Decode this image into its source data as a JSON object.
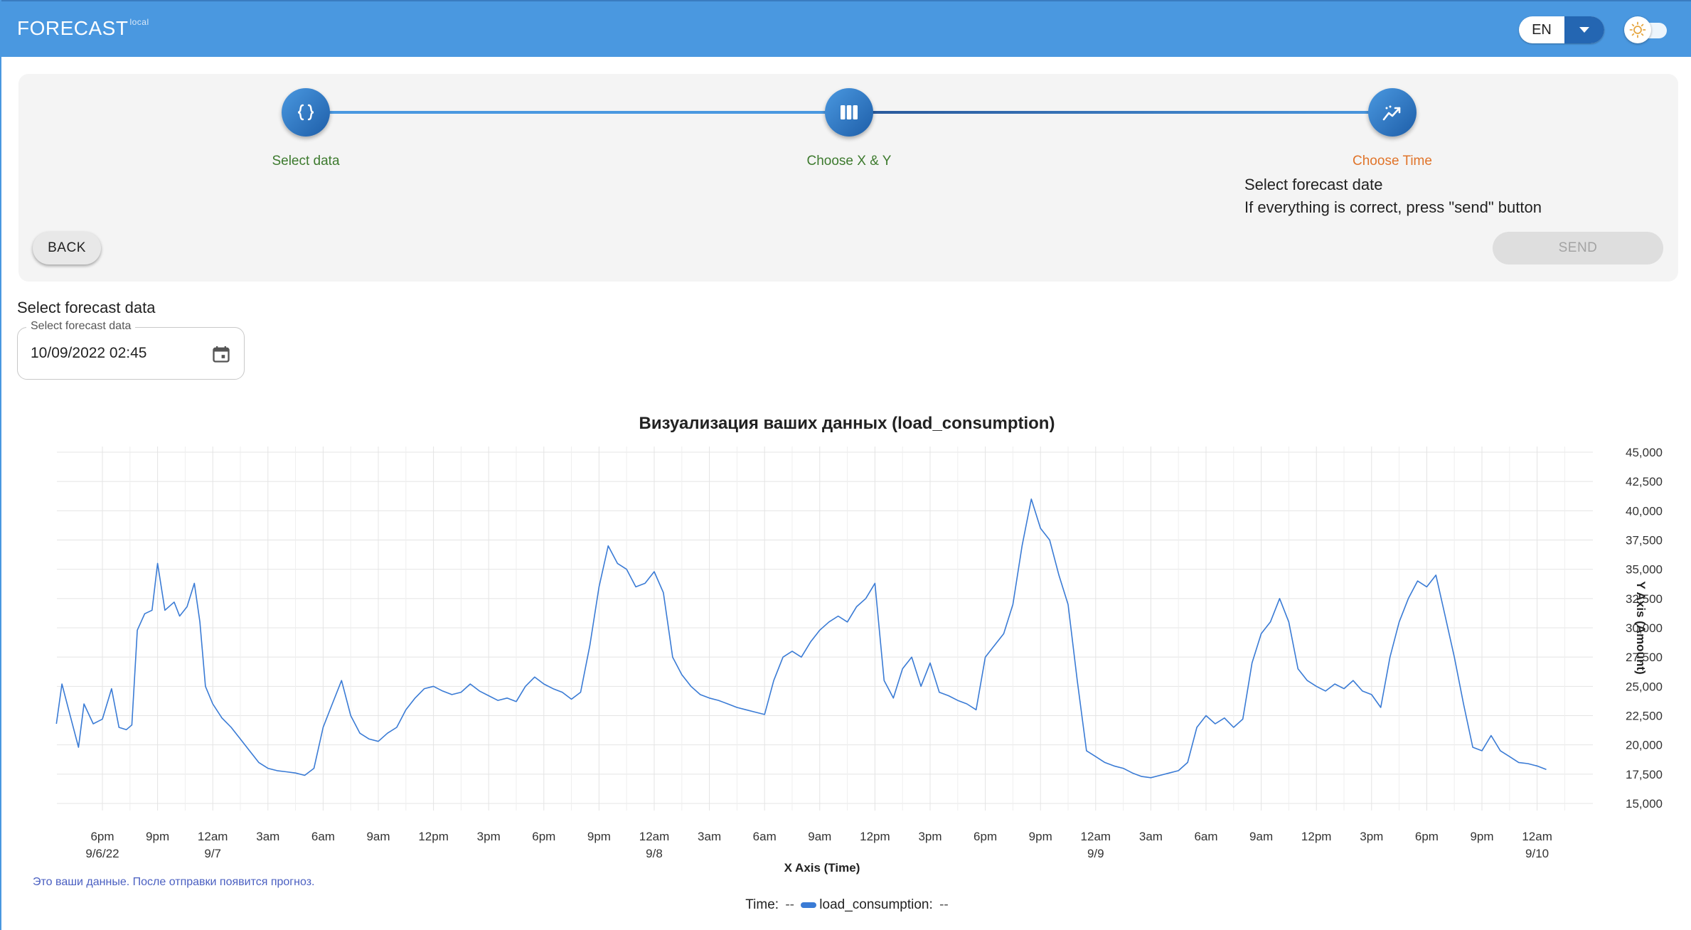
{
  "app": {
    "title": "FORECAST",
    "env": "local"
  },
  "header": {
    "language": "EN"
  },
  "stepper": {
    "steps": [
      {
        "label": "Select data",
        "icon": "braces-icon",
        "color": "#3d7a2e"
      },
      {
        "label": "Choose X & Y",
        "icon": "columns-icon",
        "color": "#3d7a2e"
      },
      {
        "label": "Choose Time",
        "icon": "trend-icon",
        "color": "#e0742a"
      }
    ],
    "description_line1": "Select forecast date",
    "description_line2": "If everything is correct, press \"send\" button",
    "back_label": "BACK",
    "send_label": "SEND"
  },
  "date_picker": {
    "heading": "Select forecast data",
    "legend": "Select forecast data",
    "value": "10/09/2022 02:45"
  },
  "chart_note": "Это ваши данные. После отправки появится прогноз.",
  "legend": {
    "time_label": "Time:",
    "time_value": "--",
    "series_label": "load_consumption:",
    "series_value": "--"
  },
  "chart_data": {
    "type": "line",
    "title": "Визуализация ваших данных (load_consumption)",
    "xlabel": "X Axis (Time)",
    "ylabel": "Y Axis (Amount)",
    "ylim": [
      15000,
      45000
    ],
    "yticks": [
      "15,000",
      "17,500",
      "20,000",
      "22,500",
      "25,000",
      "27,500",
      "30,000",
      "32,500",
      "35,000",
      "37,500",
      "40,000",
      "42,500",
      "45,000"
    ],
    "xticks": [
      {
        "label": "6pm",
        "sub": "9/6/22"
      },
      {
        "label": "9pm",
        "sub": ""
      },
      {
        "label": "12am",
        "sub": "9/7"
      },
      {
        "label": "3am",
        "sub": ""
      },
      {
        "label": "6am",
        "sub": ""
      },
      {
        "label": "9am",
        "sub": ""
      },
      {
        "label": "12pm",
        "sub": ""
      },
      {
        "label": "3pm",
        "sub": ""
      },
      {
        "label": "6pm",
        "sub": ""
      },
      {
        "label": "9pm",
        "sub": ""
      },
      {
        "label": "12am",
        "sub": "9/8"
      },
      {
        "label": "3am",
        "sub": ""
      },
      {
        "label": "6am",
        "sub": ""
      },
      {
        "label": "9am",
        "sub": ""
      },
      {
        "label": "12pm",
        "sub": ""
      },
      {
        "label": "3pm",
        "sub": ""
      },
      {
        "label": "6pm",
        "sub": ""
      },
      {
        "label": "9pm",
        "sub": ""
      },
      {
        "label": "12am",
        "sub": "9/9"
      },
      {
        "label": "3am",
        "sub": ""
      },
      {
        "label": "6am",
        "sub": ""
      },
      {
        "label": "9am",
        "sub": ""
      },
      {
        "label": "12pm",
        "sub": ""
      },
      {
        "label": "3pm",
        "sub": ""
      },
      {
        "label": "6pm",
        "sub": ""
      },
      {
        "label": "9pm",
        "sub": ""
      },
      {
        "label": "12am",
        "sub": "9/10"
      }
    ],
    "x_start_hours": -2.5,
    "x_end_hours": 80.5,
    "series": [
      {
        "name": "load_consumption",
        "color": "#3a7bd5",
        "points": [
          [
            -2.5,
            21800
          ],
          [
            -2.2,
            25200
          ],
          [
            -1.8,
            22800
          ],
          [
            -1.3,
            19800
          ],
          [
            -1.0,
            23500
          ],
          [
            -0.5,
            21800
          ],
          [
            0,
            22200
          ],
          [
            0.5,
            24800
          ],
          [
            0.9,
            21500
          ],
          [
            1.3,
            21300
          ],
          [
            1.6,
            21700
          ],
          [
            1.9,
            29800
          ],
          [
            2.3,
            31200
          ],
          [
            2.7,
            31500
          ],
          [
            3,
            35500
          ],
          [
            3.4,
            31500
          ],
          [
            3.9,
            32200
          ],
          [
            4.2,
            31000
          ],
          [
            4.6,
            31800
          ],
          [
            5.0,
            33800
          ],
          [
            5.3,
            30500
          ],
          [
            5.6,
            25000
          ],
          [
            6.0,
            23500
          ],
          [
            6.5,
            22300
          ],
          [
            7.0,
            21500
          ],
          [
            7.5,
            20500
          ],
          [
            8.0,
            19500
          ],
          [
            8.5,
            18500
          ],
          [
            9.0,
            18000
          ],
          [
            9.5,
            17800
          ],
          [
            10.0,
            17700
          ],
          [
            10.5,
            17600
          ],
          [
            11.0,
            17400
          ],
          [
            11.5,
            18000
          ],
          [
            12,
            21500
          ],
          [
            12.5,
            23500
          ],
          [
            13,
            25500
          ],
          [
            13.5,
            22500
          ],
          [
            14,
            21000
          ],
          [
            14.5,
            20500
          ],
          [
            15,
            20300
          ],
          [
            15.5,
            21000
          ],
          [
            16,
            21500
          ],
          [
            16.5,
            23000
          ],
          [
            17,
            24000
          ],
          [
            17.5,
            24800
          ],
          [
            18,
            25000
          ],
          [
            18.5,
            24600
          ],
          [
            19,
            24300
          ],
          [
            19.5,
            24500
          ],
          [
            20,
            25200
          ],
          [
            20.5,
            24600
          ],
          [
            21,
            24200
          ],
          [
            21.5,
            23800
          ],
          [
            22,
            24000
          ],
          [
            22.5,
            23700
          ],
          [
            23,
            25000
          ],
          [
            23.5,
            25800
          ],
          [
            24,
            25200
          ],
          [
            24.5,
            24800
          ],
          [
            25,
            24500
          ],
          [
            25.5,
            23900
          ],
          [
            26,
            24500
          ],
          [
            26.5,
            28500
          ],
          [
            27,
            33500
          ],
          [
            27.5,
            37000
          ],
          [
            28,
            35500
          ],
          [
            28.5,
            35000
          ],
          [
            29,
            33500
          ],
          [
            29.5,
            33800
          ],
          [
            30,
            34800
          ],
          [
            30.5,
            33000
          ],
          [
            31,
            27500
          ],
          [
            31.5,
            26000
          ],
          [
            32,
            25000
          ],
          [
            32.5,
            24300
          ],
          [
            33,
            24000
          ],
          [
            33.5,
            23800
          ],
          [
            34,
            23500
          ],
          [
            34.5,
            23200
          ],
          [
            35,
            23000
          ],
          [
            35.5,
            22800
          ],
          [
            36,
            22600
          ],
          [
            36.5,
            25500
          ],
          [
            37,
            27500
          ],
          [
            37.5,
            28000
          ],
          [
            38,
            27500
          ],
          [
            38.5,
            28800
          ],
          [
            39,
            29800
          ],
          [
            39.5,
            30500
          ],
          [
            40,
            31000
          ],
          [
            40.5,
            30500
          ],
          [
            41,
            31800
          ],
          [
            41.5,
            32500
          ],
          [
            42,
            33800
          ],
          [
            42.5,
            25500
          ],
          [
            43,
            24000
          ],
          [
            43.5,
            26500
          ],
          [
            44,
            27500
          ],
          [
            44.5,
            25000
          ],
          [
            45,
            27000
          ],
          [
            45.5,
            24500
          ],
          [
            46,
            24200
          ],
          [
            46.5,
            23800
          ],
          [
            47,
            23500
          ],
          [
            47.5,
            23000
          ],
          [
            48,
            27500
          ],
          [
            48.5,
            28500
          ],
          [
            49,
            29500
          ],
          [
            49.5,
            32000
          ],
          [
            50,
            37000
          ],
          [
            50.5,
            41000
          ],
          [
            51,
            38500
          ],
          [
            51.5,
            37500
          ],
          [
            52,
            34500
          ],
          [
            52.5,
            32000
          ],
          [
            53,
            25500
          ],
          [
            53.5,
            19500
          ],
          [
            54,
            19000
          ],
          [
            54.5,
            18500
          ],
          [
            55,
            18200
          ],
          [
            55.5,
            18000
          ],
          [
            56,
            17600
          ],
          [
            56.5,
            17300
          ],
          [
            57,
            17200
          ],
          [
            57.5,
            17400
          ],
          [
            58,
            17600
          ],
          [
            58.5,
            17800
          ],
          [
            59,
            18500
          ],
          [
            59.5,
            21500
          ],
          [
            60,
            22500
          ],
          [
            60.5,
            21800
          ],
          [
            61,
            22300
          ],
          [
            61.5,
            21500
          ],
          [
            62,
            22200
          ],
          [
            62.5,
            27000
          ],
          [
            63,
            29500
          ],
          [
            63.5,
            30500
          ],
          [
            64,
            32500
          ],
          [
            64.5,
            30500
          ],
          [
            65,
            26500
          ],
          [
            65.5,
            25500
          ],
          [
            66,
            25000
          ],
          [
            66.5,
            24600
          ],
          [
            67,
            25200
          ],
          [
            67.5,
            24800
          ],
          [
            68,
            25500
          ],
          [
            68.5,
            24600
          ],
          [
            69,
            24300
          ],
          [
            69.5,
            23200
          ],
          [
            70,
            27500
          ],
          [
            70.5,
            30500
          ],
          [
            71,
            32500
          ],
          [
            71.5,
            34000
          ],
          [
            72,
            33500
          ],
          [
            72.5,
            34500
          ],
          [
            73,
            31000
          ],
          [
            73.5,
            27500
          ],
          [
            74,
            23500
          ],
          [
            74.5,
            19800
          ],
          [
            75,
            19500
          ],
          [
            75.5,
            20800
          ],
          [
            76,
            19500
          ],
          [
            76.5,
            19000
          ],
          [
            77,
            18500
          ],
          [
            77.5,
            18400
          ],
          [
            78,
            18200
          ],
          [
            78.5,
            17900
          ]
        ]
      }
    ],
    "grid": true
  }
}
